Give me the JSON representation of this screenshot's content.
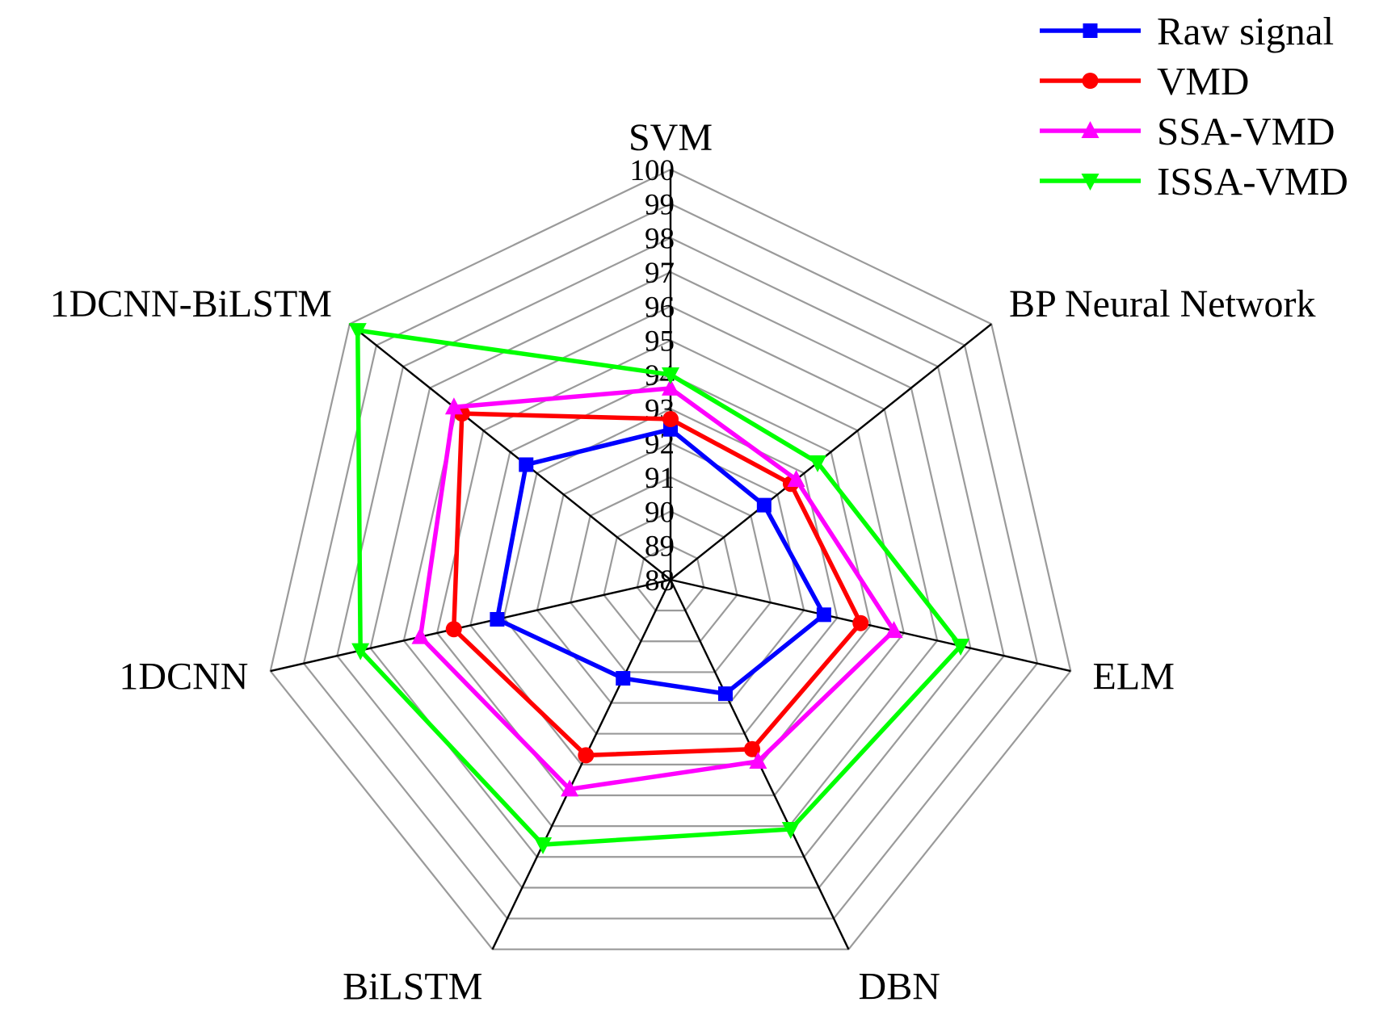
{
  "chart_data": {
    "type": "radar",
    "axes": [
      "SVM",
      "BP Neural Network",
      "ELM",
      "DBN",
      "BiLSTM",
      "1DCNN",
      "1DCNN-BiLSTM"
    ],
    "rlim": [
      88,
      100
    ],
    "ticks": [
      "88",
      "89",
      "90",
      "91",
      "92",
      "93",
      "94",
      "95",
      "96",
      "97",
      "98",
      "99",
      "100"
    ],
    "grid": true,
    "legend_position": "top-right",
    "series": [
      {
        "name": "Raw signal",
        "color": "#0000ff",
        "marker": "square",
        "values": [
          92.4,
          91.5,
          92.6,
          91.7,
          91.2,
          93.2,
          93.4
        ]
      },
      {
        "name": "VMD",
        "color": "#ff0000",
        "marker": "circle",
        "values": [
          92.7,
          92.5,
          93.7,
          93.5,
          93.7,
          94.5,
          95.8
        ]
      },
      {
        "name": "SSA-VMD",
        "color": "#ff00ff",
        "marker": "triangle-up",
        "values": [
          93.6,
          92.7,
          94.7,
          93.9,
          94.8,
          95.5,
          96.1
        ]
      },
      {
        "name": "ISSA-VMD",
        "color": "#00ff00",
        "marker": "triangle-down",
        "values": [
          94.0,
          93.5,
          96.7,
          96.1,
          96.6,
          97.3,
          99.7
        ]
      }
    ]
  }
}
